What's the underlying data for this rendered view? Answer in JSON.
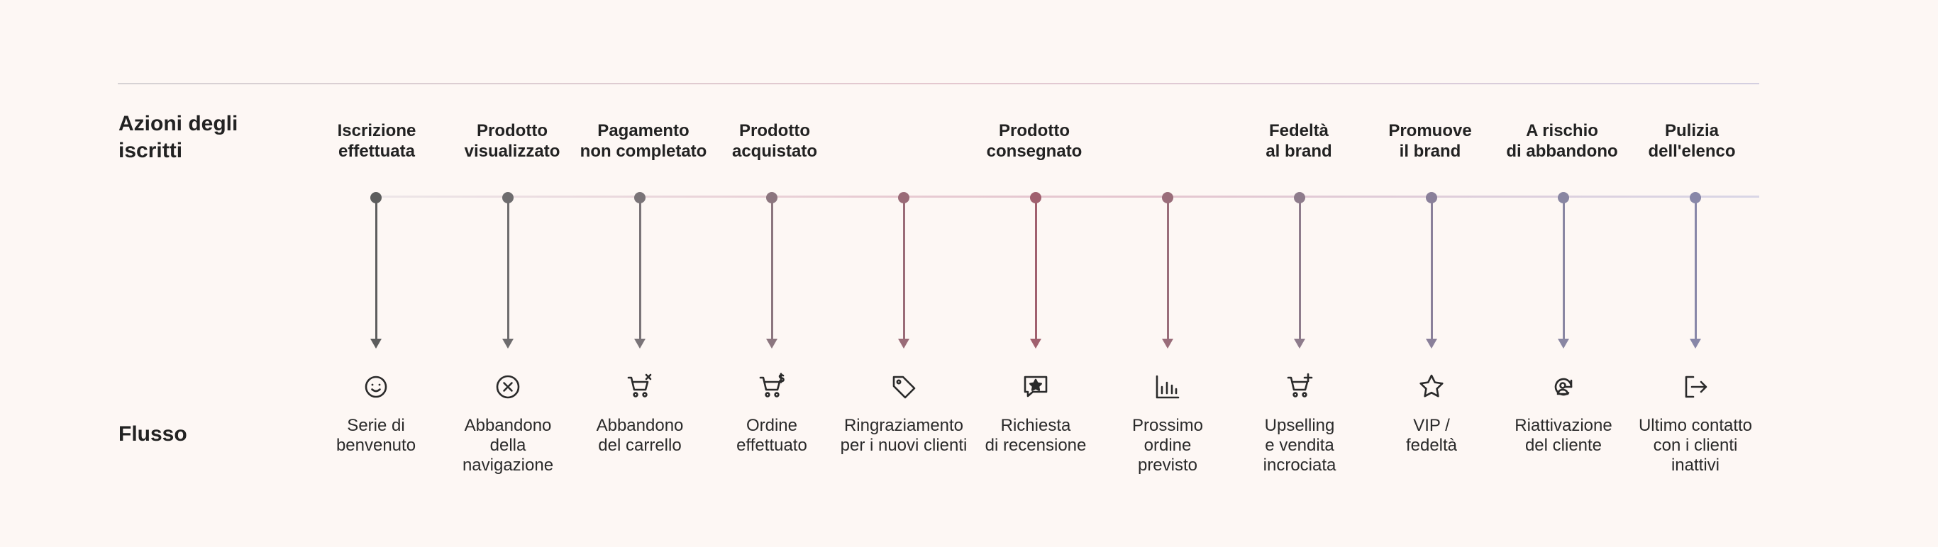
{
  "row_labels": {
    "actions": [
      "Azioni degli",
      "iscritti"
    ],
    "flow": "Flusso"
  },
  "stages": [
    [
      "Iscrizione",
      "effettuata"
    ],
    [
      "Prodotto",
      "visualizzato"
    ],
    [
      "Pagamento",
      "non completato"
    ],
    [
      "Prodotto",
      "acquistato"
    ],
    [
      "Prodotto",
      "consegnato"
    ],
    [
      "Fedeltà",
      "al brand"
    ],
    [
      "Promuove",
      "il brand"
    ],
    [
      "A rischio",
      "di abbandono"
    ],
    [
      "Pulizia",
      "dell'elenco"
    ]
  ],
  "flows": [
    {
      "icon": "smiley-icon",
      "color": "#5d5d5d",
      "lines": [
        "Serie di",
        "benvenuto"
      ]
    },
    {
      "icon": "x-circle-icon",
      "color": "#6e6c6e",
      "lines": [
        "Abbandono",
        "della",
        "navigazione"
      ]
    },
    {
      "icon": "cart-x-icon",
      "color": "#7a7478",
      "lines": [
        "Abbandono",
        "del carrello"
      ]
    },
    {
      "icon": "cart-dollar-icon",
      "color": "#8c767f",
      "lines": [
        "Ordine",
        "effettuato"
      ]
    },
    {
      "icon": "tag-icon",
      "color": "#9a6b77",
      "lines": [
        "Ringraziamento",
        "per i nuovi clienti"
      ]
    },
    {
      "icon": "review-star-icon",
      "color": "#a0606e",
      "lines": [
        "Richiesta",
        "di recensione"
      ]
    },
    {
      "icon": "bar-chart-icon",
      "color": "#9a6d7a",
      "lines": [
        "Prossimo",
        "ordine",
        "previsto"
      ]
    },
    {
      "icon": "cart-plus-icon",
      "color": "#8e7c8c",
      "lines": [
        "Upselling",
        "e vendita",
        "incrociata"
      ]
    },
    {
      "icon": "star-icon",
      "color": "#8a809a",
      "lines": [
        "VIP /",
        "fedeltà"
      ]
    },
    {
      "icon": "user-refresh-icon",
      "color": "#8986a2",
      "lines": [
        "Riattivazione",
        "del cliente"
      ]
    },
    {
      "icon": "logout-icon",
      "color": "#8887a8",
      "lines": [
        "Ultimo contatto",
        "con i clienti",
        "inattivi"
      ]
    }
  ]
}
